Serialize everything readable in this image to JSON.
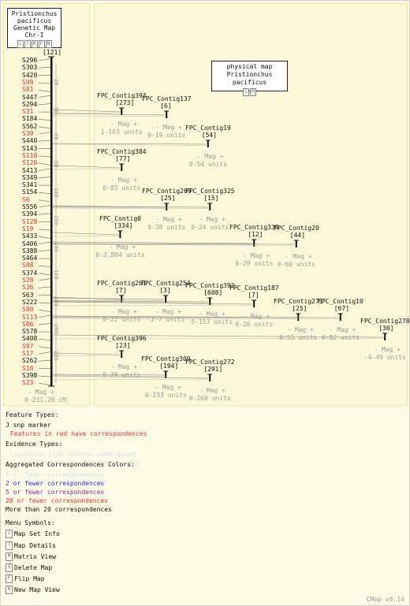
{
  "map_set": {
    "title": "Pristionchus pacificus",
    "subtitle": "Genetic Map",
    "chromosome": "Chr-I",
    "buttons": [
      "i",
      "?",
      "M",
      "F",
      "N"
    ]
  },
  "physical": {
    "title": "physical map",
    "subtitle": "Pristionchus pacificus",
    "buttons": [
      "i",
      "M"
    ]
  },
  "genetic_map": {
    "feature_count": "[121]",
    "range_label": "0-231.20 cM",
    "mag_label": "- Mag +",
    "scale_ticks": [
      "20",
      "40",
      "60",
      "80",
      "100",
      "120",
      "140",
      "160",
      "180",
      "200",
      "220"
    ],
    "markers": [
      {
        "name": "S296",
        "red": false
      },
      {
        "name": "S303",
        "red": false
      },
      {
        "name": "S420",
        "red": false
      },
      {
        "name": "S99",
        "red": true
      },
      {
        "name": "S81",
        "red": true
      },
      {
        "name": "S447",
        "red": false
      },
      {
        "name": "S294",
        "red": false
      },
      {
        "name": "S31",
        "red": true
      },
      {
        "name": "S184",
        "red": false
      },
      {
        "name": "S562",
        "red": false
      },
      {
        "name": "S39",
        "red": true
      },
      {
        "name": "S440",
        "red": false
      },
      {
        "name": "S143",
        "red": false
      },
      {
        "name": "S110",
        "red": true
      },
      {
        "name": "S120",
        "red": true
      },
      {
        "name": "S413",
        "red": false
      },
      {
        "name": "S349",
        "red": false
      },
      {
        "name": "S341",
        "red": false
      },
      {
        "name": "S154",
        "red": false
      },
      {
        "name": "S6",
        "red": true
      },
      {
        "name": "S556",
        "red": false
      },
      {
        "name": "S394",
        "red": false
      },
      {
        "name": "S128",
        "red": true
      },
      {
        "name": "S19",
        "red": true
      },
      {
        "name": "S433",
        "red": false
      },
      {
        "name": "S406",
        "red": false
      },
      {
        "name": "S388",
        "red": false
      },
      {
        "name": "S464",
        "red": false
      },
      {
        "name": "S88",
        "red": true
      },
      {
        "name": "S374",
        "red": false
      },
      {
        "name": "S28",
        "red": true
      },
      {
        "name": "S36",
        "red": true
      },
      {
        "name": "S63",
        "red": false
      },
      {
        "name": "S222",
        "red": false
      },
      {
        "name": "S80",
        "red": true
      },
      {
        "name": "S113",
        "red": true
      },
      {
        "name": "S86",
        "red": true
      },
      {
        "name": "S578",
        "red": false
      },
      {
        "name": "S408",
        "red": false
      },
      {
        "name": "S97",
        "red": true
      },
      {
        "name": "S17",
        "red": true
      },
      {
        "name": "S262",
        "red": false
      },
      {
        "name": "S18",
        "red": true
      },
      {
        "name": "S398",
        "red": false
      },
      {
        "name": "S23",
        "red": true
      }
    ]
  },
  "contigs": [
    {
      "name": "FPC_Contig394",
      "count": "[273]",
      "range": "1-163 units"
    },
    {
      "name": "FPC_Contig137",
      "count": "[6]",
      "range": "0-19 units"
    },
    {
      "name": "FPC_Contig19",
      "count": "[54]",
      "range": "0-54 units"
    },
    {
      "name": "FPC_Contig384",
      "count": "[77]",
      "range": "0-83 units"
    },
    {
      "name": "FPC_Contig269",
      "count": "[25]",
      "range": "0-38 units"
    },
    {
      "name": "FPC_Contig325",
      "count": "[15]",
      "range": "0-24 units"
    },
    {
      "name": "FPC_Contig0",
      "count": "[334]",
      "range": "0-2,884 units"
    },
    {
      "name": "FPC_Contig339",
      "count": "[12]",
      "range": "0-29 units"
    },
    {
      "name": "FPC_Contig20",
      "count": "[44]",
      "range": "0-60 units"
    },
    {
      "name": "FPC_Contig261",
      "count": "[7]",
      "range": "0-22 units"
    },
    {
      "name": "FPC_Contig254",
      "count": "[3]",
      "range": "-2-7 units"
    },
    {
      "name": "FPC_Contig392",
      "count": "[608]",
      "range": "-5-153 units"
    },
    {
      "name": "FPC_Contig187",
      "count": "[7]",
      "range": "0-26 units"
    },
    {
      "name": "FPC_Contig271",
      "count": "[25]",
      "range": "0-55 units"
    },
    {
      "name": "FPC_Contig10",
      "count": "[67]",
      "range": "0-82 units"
    },
    {
      "name": "FPC_Contig278",
      "count": "[30]",
      "range": "-4-49 units"
    },
    {
      "name": "FPC_Contig396",
      "count": "[23]",
      "range": "0-24 units"
    },
    {
      "name": "FPC_Contig309",
      "count": "[194]",
      "range": "0-233 units"
    },
    {
      "name": "FPC_Contig272",
      "count": "[291]",
      "range": "0-260 units"
    }
  ],
  "legend": {
    "feature_types_title": "Feature Types:",
    "feature_snp": "snp marker",
    "feature_red_note": "Features in red have correspondences",
    "evidence_title": "Evidence Types:",
    "evidence_note": "Lightblue line denotes name based",
    "aggregated_title": "Aggregated Correspondences Colors:",
    "agg": [
      {
        "text": "1 or fewer correspondences",
        "color": "#cfe3ef"
      },
      {
        "text": "2 or fewer correspondences",
        "color": "#2a2ad6"
      },
      {
        "text": "5 or fewer correspondences",
        "color": "#8a2a9a"
      },
      {
        "text": "20 or fewer correspondences",
        "color": "#e0302a"
      },
      {
        "text": "More than 20 correspondences",
        "color": "#111111"
      }
    ],
    "menu_title": "Menu Symbols:",
    "menu": [
      {
        "icon": "i",
        "label": "Map Set Info"
      },
      {
        "icon": "?",
        "label": "Map Details"
      },
      {
        "icon": "M",
        "label": "Matrix View"
      },
      {
        "icon": "X",
        "label": "Delete Map"
      },
      {
        "icon": "F",
        "label": "Flip Map"
      },
      {
        "icon": "N",
        "label": "New Map View"
      }
    ]
  },
  "version": "CMap v0.14",
  "colors": {
    "red": "#e0302a",
    "gray": "#9a9a9a",
    "bg": "#fdfbe6"
  }
}
